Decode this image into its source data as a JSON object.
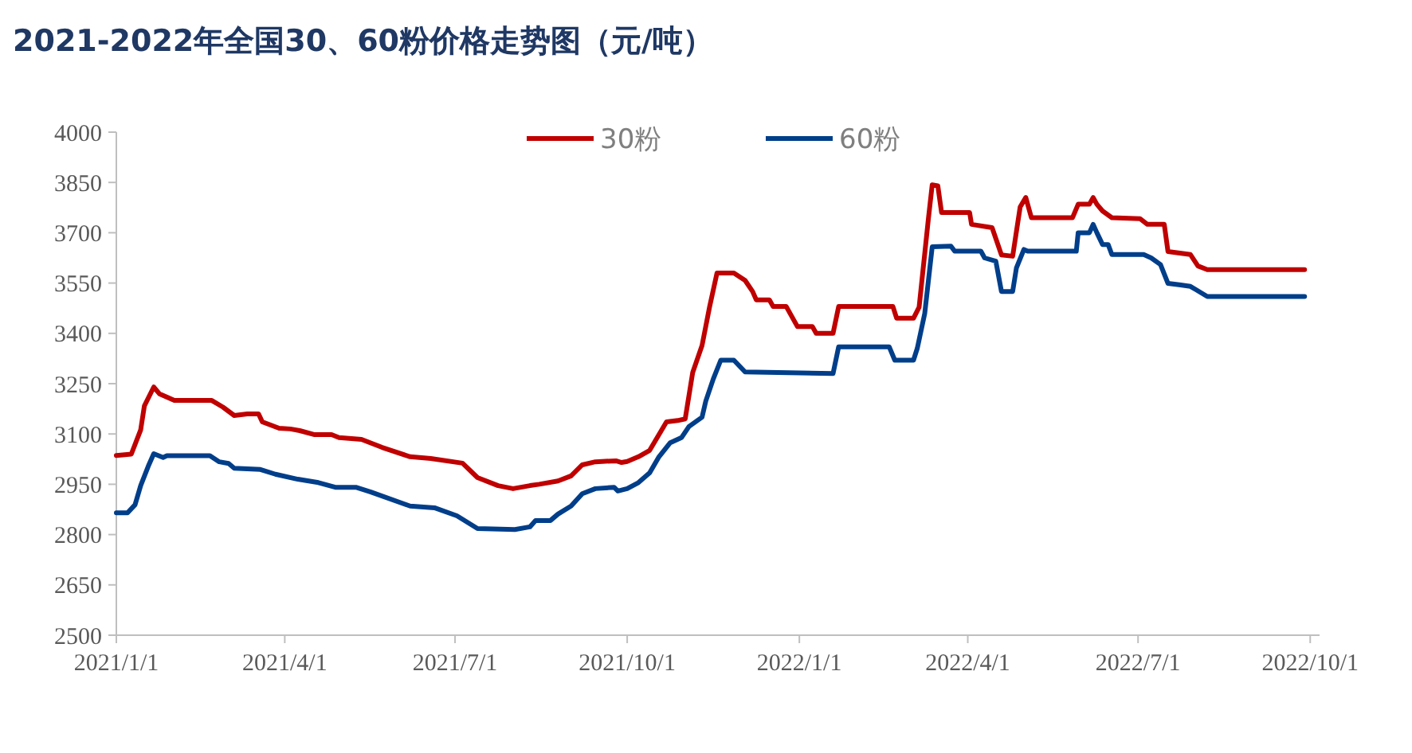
{
  "chart_data": {
    "type": "line",
    "title": "2021-2022年全国30、60粉价格走势图（元/吨）",
    "xlim": [
      "2021-01-01",
      "2022-10-06"
    ],
    "xticks": [
      {
        "value": "2021-01-01",
        "label": "2021/1/1"
      },
      {
        "value": "2021-04-01",
        "label": "2021/4/1"
      },
      {
        "value": "2021-07-01",
        "label": "2021/7/1"
      },
      {
        "value": "2021-10-01",
        "label": "2021/10/1"
      },
      {
        "value": "2022-01-01",
        "label": "2022/1/1"
      },
      {
        "value": "2022-04-01",
        "label": "2022/4/1"
      },
      {
        "value": "2022-07-01",
        "label": "2022/7/1"
      },
      {
        "value": "2022-10-01",
        "label": "2022/10/1"
      }
    ],
    "ylim": [
      2500,
      4000
    ],
    "yticks": [
      2500,
      2650,
      2800,
      2950,
      3100,
      3250,
      3400,
      3550,
      3700,
      3850,
      4000
    ],
    "grid": false,
    "legend": "top",
    "marker": "none",
    "line_style": "solid",
    "series": [
      {
        "name": "30粉",
        "color": "#c00000",
        "x": [
          "2021-01-01",
          "2021-01-09",
          "2021-01-14",
          "2021-01-16",
          "2021-01-21",
          "2021-01-24",
          "2021-02-01",
          "2021-02-21",
          "2021-02-27",
          "2021-03-05",
          "2021-03-12",
          "2021-03-18",
          "2021-03-20",
          "2021-03-29",
          "2021-04-04",
          "2021-04-09",
          "2021-04-17",
          "2021-04-26",
          "2021-04-30",
          "2021-05-12",
          "2021-05-23",
          "2021-06-07",
          "2021-06-18",
          "2021-07-05",
          "2021-07-13",
          "2021-07-24",
          "2021-08-01",
          "2021-08-10",
          "2021-08-15",
          "2021-08-25",
          "2021-09-01",
          "2021-09-07",
          "2021-09-14",
          "2021-09-25",
          "2021-09-28",
          "2021-10-01",
          "2021-10-07",
          "2021-10-13",
          "2021-10-22",
          "2021-10-28",
          "2021-11-01",
          "2021-11-05",
          "2021-11-10",
          "2021-11-14",
          "2021-11-18",
          "2021-11-27",
          "2021-12-03",
          "2021-12-07",
          "2021-12-09",
          "2021-12-16",
          "2021-12-18",
          "2021-12-25",
          "2021-12-31",
          "2022-01-08",
          "2022-01-10",
          "2022-01-19",
          "2022-01-22",
          "2022-02-20",
          "2022-02-22",
          "2022-03-03",
          "2022-03-06",
          "2022-03-11",
          "2022-03-13",
          "2022-03-16",
          "2022-03-18",
          "2022-04-02",
          "2022-04-03",
          "2022-04-14",
          "2022-04-19",
          "2022-04-25",
          "2022-04-29",
          "2022-05-02",
          "2022-05-05",
          "2022-05-27",
          "2022-05-30",
          "2022-06-05",
          "2022-06-07",
          "2022-06-09",
          "2022-06-12",
          "2022-06-17",
          "2022-07-02",
          "2022-07-06",
          "2022-07-15",
          "2022-07-17",
          "2022-07-29",
          "2022-08-02",
          "2022-08-07",
          "2022-09-28"
        ],
        "values": [
          3036,
          3040,
          3112,
          3184,
          3240,
          3220,
          3200,
          3200,
          3180,
          3155,
          3160,
          3160,
          3136,
          3117,
          3115,
          3110,
          3098,
          3098,
          3089,
          3084,
          3060,
          3032,
          3027,
          3013,
          2970,
          2946,
          2937,
          2946,
          2950,
          2960,
          2975,
          3008,
          3017,
          3020,
          3015,
          3018,
          3032,
          3051,
          3136,
          3140,
          3145,
          3283,
          3364,
          3478,
          3580,
          3580,
          3558,
          3525,
          3500,
          3500,
          3480,
          3480,
          3420,
          3420,
          3400,
          3400,
          3480,
          3480,
          3445,
          3445,
          3478,
          3744,
          3843,
          3840,
          3760,
          3760,
          3725,
          3715,
          3634,
          3630,
          3777,
          3805,
          3745,
          3745,
          3785,
          3785,
          3805,
          3785,
          3765,
          3745,
          3742,
          3725,
          3725,
          3644,
          3635,
          3601,
          3590,
          3590
        ]
      },
      {
        "name": "60粉",
        "color": "#003e8a",
        "x": [
          "2021-01-01",
          "2021-01-07",
          "2021-01-11",
          "2021-01-14",
          "2021-01-18",
          "2021-01-21",
          "2021-01-26",
          "2021-01-28",
          "2021-02-20",
          "2021-02-25",
          "2021-03-02",
          "2021-03-05",
          "2021-03-19",
          "2021-03-27",
          "2021-04-08",
          "2021-04-19",
          "2021-04-28",
          "2021-05-09",
          "2021-05-17",
          "2021-06-07",
          "2021-06-20",
          "2021-07-02",
          "2021-07-13",
          "2021-08-02",
          "2021-08-10",
          "2021-08-13",
          "2021-08-21",
          "2021-08-25",
          "2021-09-01",
          "2021-09-07",
          "2021-09-14",
          "2021-09-24",
          "2021-09-26",
          "2021-10-01",
          "2021-10-07",
          "2021-10-13",
          "2021-10-18",
          "2021-10-24",
          "2021-10-30",
          "2021-11-03",
          "2021-11-10",
          "2021-11-12",
          "2021-11-16",
          "2021-11-20",
          "2021-11-27",
          "2021-12-03",
          "2022-01-19",
          "2022-01-22",
          "2022-02-18",
          "2022-02-21",
          "2022-03-03",
          "2022-03-05",
          "2022-03-09",
          "2022-03-11",
          "2022-03-13",
          "2022-03-23",
          "2022-03-25",
          "2022-04-08",
          "2022-04-10",
          "2022-04-16",
          "2022-04-19",
          "2022-04-25",
          "2022-04-27",
          "2022-05-01",
          "2022-05-03",
          "2022-05-29",
          "2022-05-30",
          "2022-06-05",
          "2022-06-07",
          "2022-06-09",
          "2022-06-12",
          "2022-06-15",
          "2022-06-17",
          "2022-07-04",
          "2022-07-08",
          "2022-07-13",
          "2022-07-17",
          "2022-07-23",
          "2022-07-29",
          "2022-08-01",
          "2022-08-07",
          "2022-09-28"
        ],
        "values": [
          2865,
          2865,
          2889,
          2946,
          3003,
          3041,
          3030,
          3035,
          3035,
          3017,
          3012,
          2998,
          2994,
          2980,
          2965,
          2955,
          2941,
          2941,
          2927,
          2885,
          2880,
          2856,
          2818,
          2815,
          2823,
          2842,
          2842,
          2861,
          2885,
          2922,
          2937,
          2941,
          2930,
          2937,
          2955,
          2984,
          3032,
          3074,
          3089,
          3122,
          3150,
          3198,
          3264,
          3320,
          3320,
          3285,
          3280,
          3360,
          3360,
          3320,
          3320,
          3355,
          3459,
          3559,
          3658,
          3660,
          3645,
          3645,
          3625,
          3615,
          3525,
          3525,
          3595,
          3650,
          3645,
          3645,
          3700,
          3700,
          3725,
          3700,
          3665,
          3665,
          3635,
          3635,
          3625,
          3605,
          3549,
          3545,
          3540,
          3530,
          3510,
          3510
        ]
      }
    ]
  }
}
